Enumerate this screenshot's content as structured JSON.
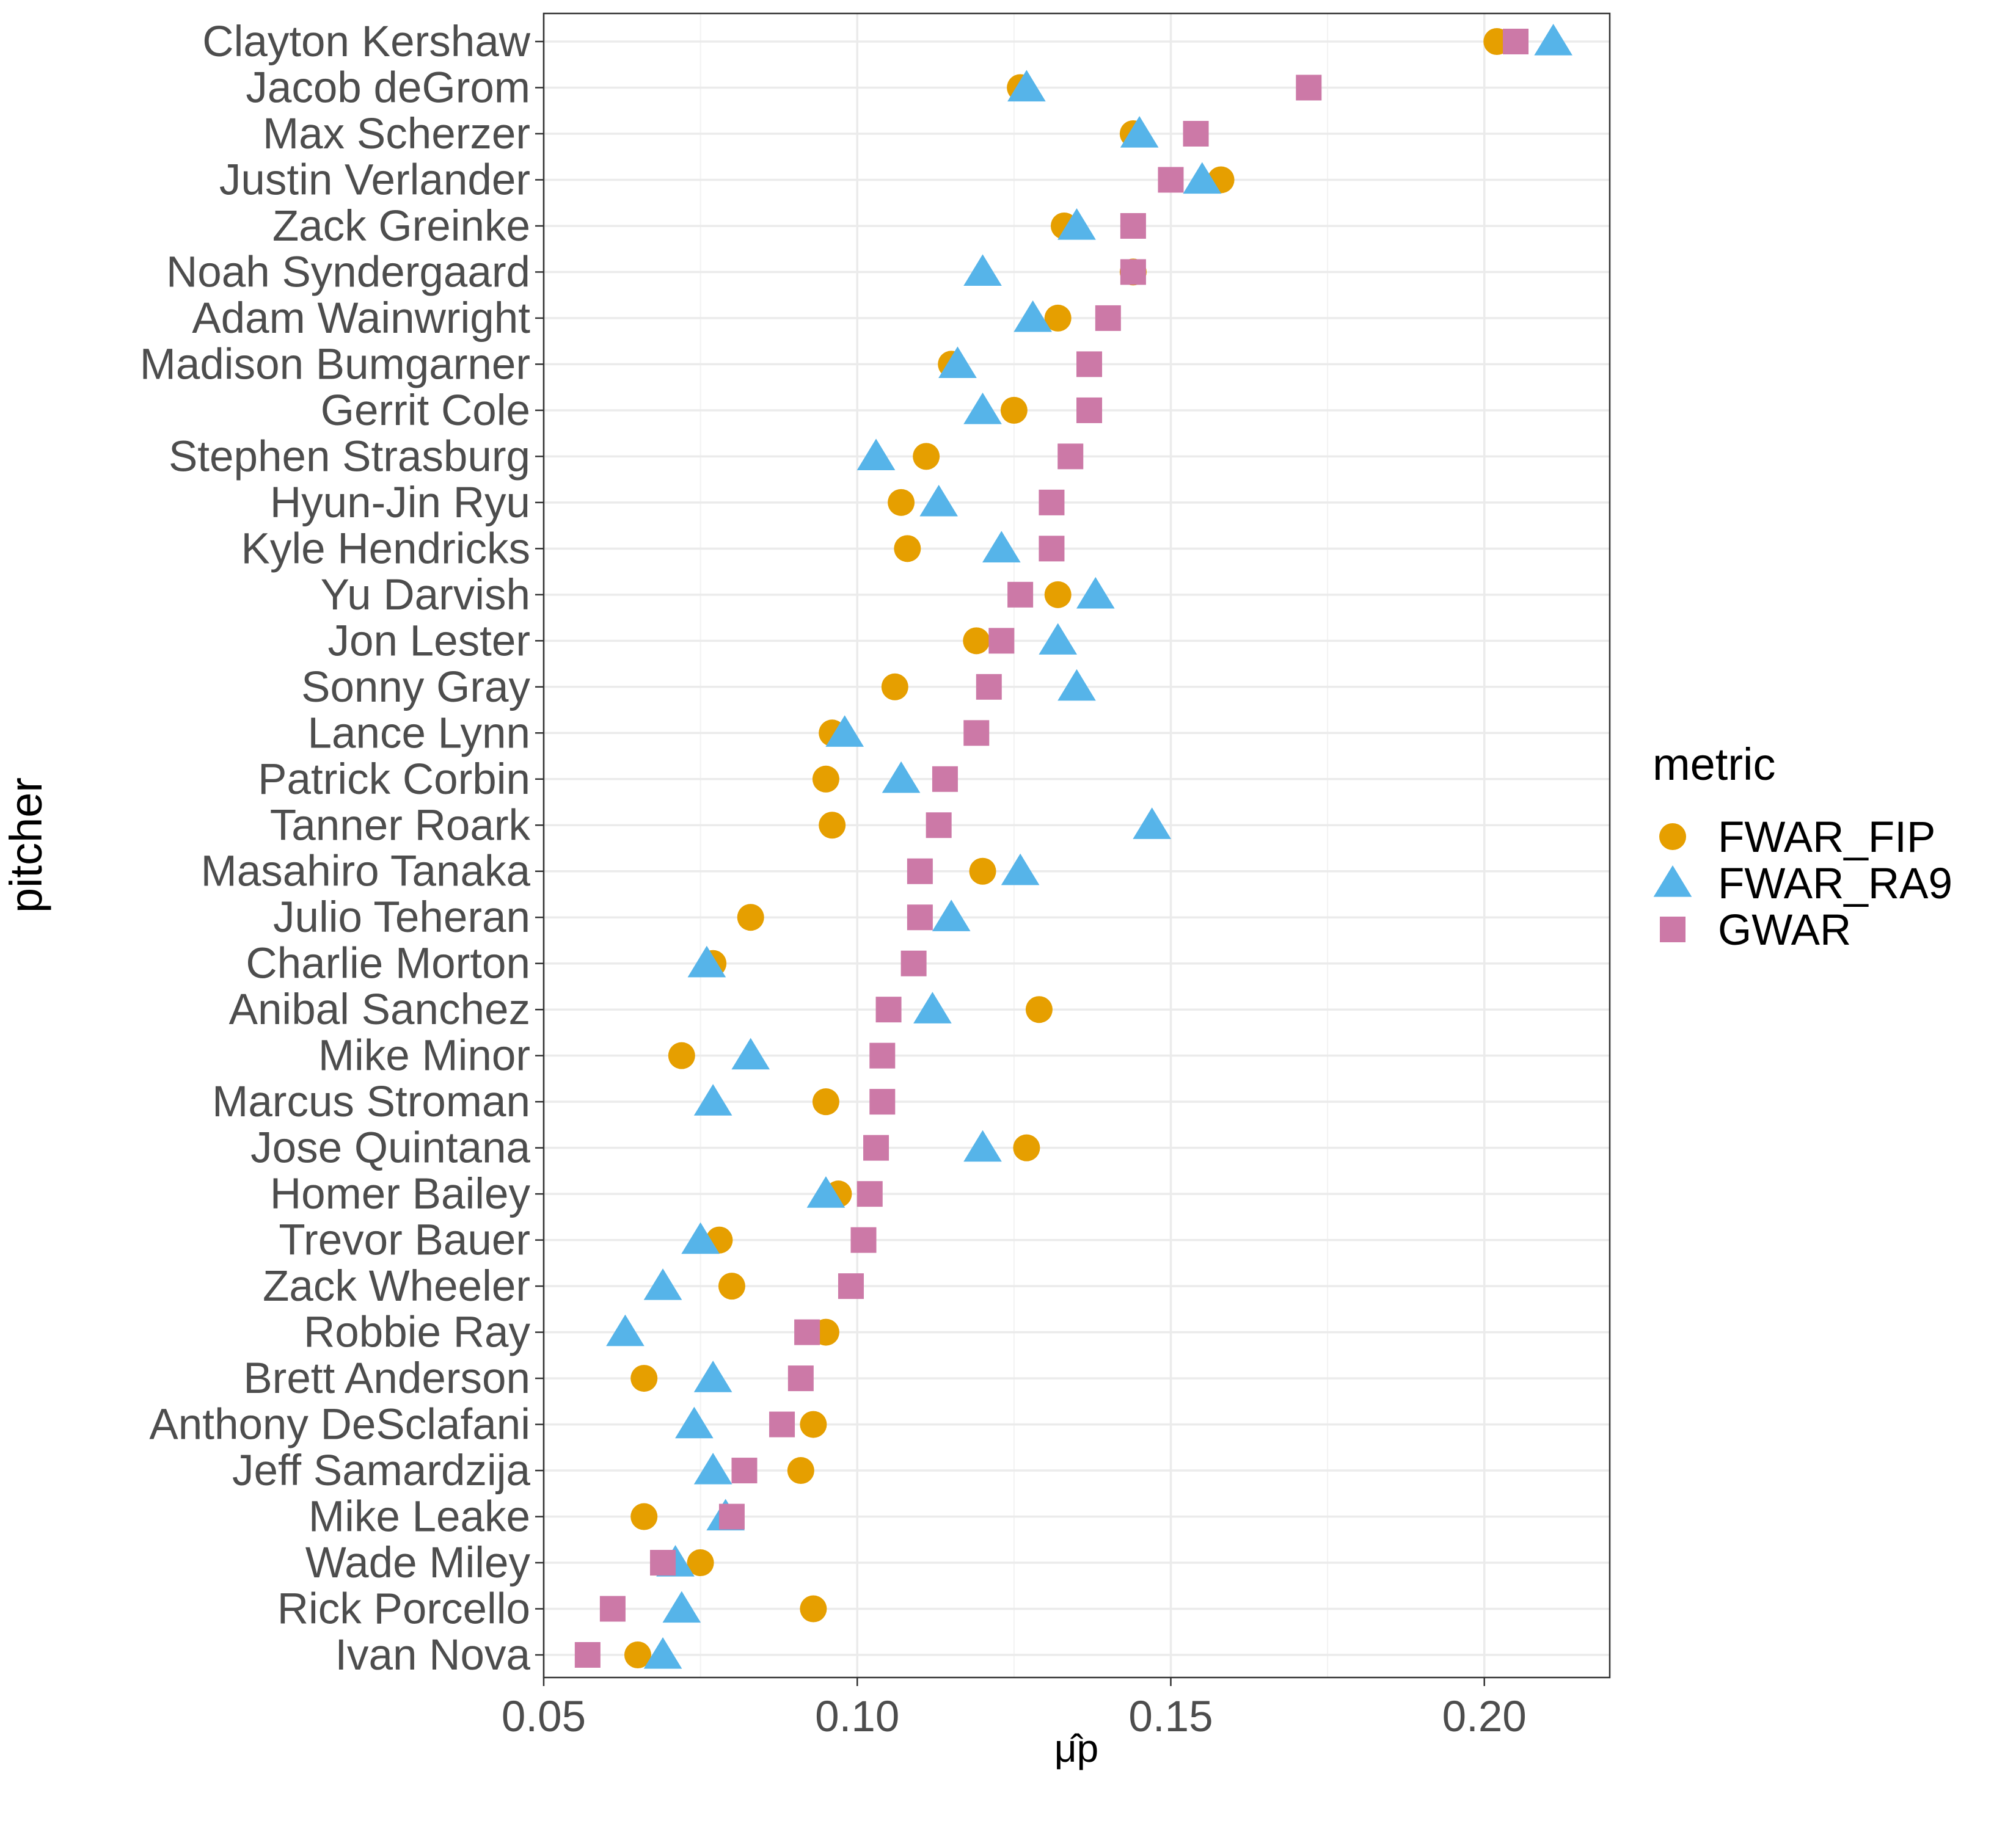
{
  "chart_data": {
    "type": "scatter",
    "xlabel": "μ̂p",
    "ylabel": "pitcher",
    "xlim": [
      0.05,
      0.22
    ],
    "x_ticks": [
      "0.05",
      "0.10",
      "0.15",
      "0.20"
    ],
    "x_tick_values": [
      0.05,
      0.1,
      0.15,
      0.2
    ],
    "grid": true,
    "legend_position": "right",
    "legend_title": "metric",
    "categories": [
      "Clayton Kershaw",
      "Jacob deGrom",
      "Max Scherzer",
      "Justin Verlander",
      "Zack Greinke",
      "Noah Syndergaard",
      "Adam Wainwright",
      "Madison Bumgarner",
      "Gerrit Cole",
      "Stephen Strasburg",
      "Hyun-Jin Ryu",
      "Kyle Hendricks",
      "Yu Darvish",
      "Jon Lester",
      "Sonny Gray",
      "Lance Lynn",
      "Patrick Corbin",
      "Tanner Roark",
      "Masahiro Tanaka",
      "Julio Teheran",
      "Charlie Morton",
      "Anibal Sanchez",
      "Mike Minor",
      "Marcus Stroman",
      "Jose Quintana",
      "Homer Bailey",
      "Trevor Bauer",
      "Zack Wheeler",
      "Robbie Ray",
      "Brett Anderson",
      "Anthony DeSclafani",
      "Jeff Samardzija",
      "Mike Leake",
      "Wade Miley",
      "Rick Porcello",
      "Ivan Nova"
    ],
    "series": [
      {
        "name": "FWAR_FIP",
        "color": "#E69F00",
        "shape": "circle",
        "values": [
          0.202,
          0.126,
          0.144,
          0.158,
          0.133,
          0.144,
          0.132,
          0.115,
          0.125,
          0.111,
          0.107,
          0.108,
          0.132,
          0.119,
          0.106,
          0.096,
          0.095,
          0.096,
          0.12,
          0.083,
          0.077,
          0.129,
          0.072,
          0.095,
          0.127,
          0.097,
          0.078,
          0.08,
          0.095,
          0.066,
          0.093,
          0.091,
          0.066,
          0.075,
          0.093,
          0.065
        ]
      },
      {
        "name": "FWAR_RA9",
        "color": "#56B4E9",
        "shape": "triangle",
        "values": [
          0.211,
          0.127,
          0.145,
          0.155,
          0.135,
          0.12,
          0.128,
          0.116,
          0.12,
          0.103,
          0.113,
          0.123,
          0.138,
          0.132,
          0.135,
          0.098,
          0.107,
          0.147,
          0.126,
          0.115,
          0.076,
          0.112,
          0.083,
          0.077,
          0.12,
          0.095,
          0.075,
          0.069,
          0.063,
          0.077,
          0.074,
          0.077,
          0.079,
          0.071,
          0.072,
          0.069
        ]
      },
      {
        "name": "GWAR",
        "color": "#CC79A7",
        "shape": "square",
        "values": [
          0.205,
          0.172,
          0.154,
          0.15,
          0.144,
          0.144,
          0.14,
          0.137,
          0.137,
          0.134,
          0.131,
          0.131,
          0.126,
          0.123,
          0.121,
          0.119,
          0.114,
          0.113,
          0.11,
          0.11,
          0.109,
          0.105,
          0.104,
          0.104,
          0.103,
          0.102,
          0.101,
          0.099,
          0.092,
          0.091,
          0.088,
          0.082,
          0.08,
          0.069,
          0.061,
          0.057
        ]
      }
    ]
  }
}
